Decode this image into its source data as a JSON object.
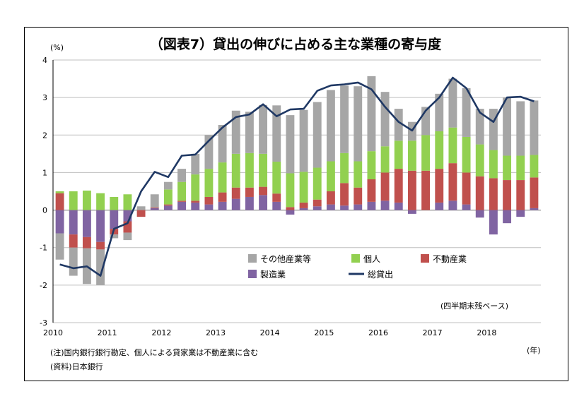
{
  "chart_data": {
    "type": "bar",
    "title": "（図表7）貸出の伸びに占める主な業種の寄与度",
    "y_unit": "(%)",
    "x_unit": "(年)",
    "ylim": [
      -3,
      4
    ],
    "yticks": [
      "4",
      "3",
      "2",
      "1",
      "0",
      "-1",
      "-2",
      "-3"
    ],
    "ytick_values": [
      4,
      3,
      2,
      1,
      0,
      -1,
      -2,
      -3
    ],
    "xtick_labels": [
      "2010",
      "2011",
      "2012",
      "2013",
      "2014",
      "2015",
      "2016",
      "2017",
      "2018"
    ],
    "xtick_quarter_index": [
      0,
      4,
      8,
      12,
      16,
      20,
      24,
      28,
      32
    ],
    "quarters": [
      "2010Q1",
      "2010Q2",
      "2010Q3",
      "2010Q4",
      "2011Q1",
      "2011Q2",
      "2011Q3",
      "2011Q4",
      "2012Q1",
      "2012Q2",
      "2012Q3",
      "2012Q4",
      "2013Q1",
      "2013Q2",
      "2013Q3",
      "2013Q4",
      "2014Q1",
      "2014Q2",
      "2014Q3",
      "2014Q4",
      "2015Q1",
      "2015Q2",
      "2015Q3",
      "2015Q4",
      "2016Q1",
      "2016Q2",
      "2016Q3",
      "2016Q4",
      "2017Q1",
      "2017Q2",
      "2017Q3",
      "2017Q4",
      "2018Q1",
      "2018Q2",
      "2018Q3",
      "2018Q4"
    ],
    "grid": true,
    "legend_position": "bottom-left",
    "series": [
      {
        "name": "製造業",
        "color": "#8064a2",
        "values": [
          -0.62,
          -0.65,
          -0.72,
          -0.85,
          -0.5,
          -0.3,
          0.0,
          0.05,
          0.12,
          0.22,
          0.2,
          0.15,
          0.22,
          0.3,
          0.35,
          0.4,
          0.22,
          -0.12,
          0.05,
          0.1,
          0.15,
          0.12,
          0.15,
          0.22,
          0.25,
          0.2,
          -0.1,
          0.0,
          0.2,
          0.25,
          0.15,
          -0.2,
          -0.65,
          -0.35,
          -0.18,
          0.05
        ]
      },
      {
        "name": "不動産業",
        "color": "#c0504d",
        "values": [
          0.45,
          -0.35,
          -0.3,
          -0.2,
          -0.15,
          -0.3,
          -0.18,
          0.02,
          0.03,
          0.03,
          0.05,
          0.2,
          0.25,
          0.3,
          0.25,
          0.22,
          0.22,
          0.08,
          0.15,
          0.18,
          0.35,
          0.6,
          0.45,
          0.6,
          0.75,
          0.9,
          1.05,
          1.05,
          0.9,
          1.0,
          0.85,
          0.9,
          0.85,
          0.8,
          0.8,
          0.82
        ]
      },
      {
        "name": "個人",
        "color": "#92d050",
        "values": [
          0.05,
          0.5,
          0.52,
          0.45,
          0.35,
          0.42,
          0.0,
          0.0,
          0.4,
          0.5,
          0.7,
          0.75,
          0.8,
          0.9,
          0.92,
          0.88,
          0.85,
          0.9,
          0.82,
          0.85,
          0.8,
          0.8,
          0.7,
          0.75,
          0.7,
          0.75,
          0.8,
          0.95,
          1.0,
          0.95,
          0.95,
          0.85,
          0.75,
          0.65,
          0.65,
          0.6
        ]
      },
      {
        "name": "その他産業等",
        "color": "#a6a6a6",
        "values": [
          -0.7,
          -0.75,
          -0.95,
          -0.95,
          -0.1,
          -0.2,
          0.1,
          0.35,
          0.2,
          0.35,
          0.55,
          0.9,
          1.0,
          1.15,
          1.1,
          1.3,
          1.5,
          1.55,
          1.65,
          1.75,
          1.9,
          1.8,
          2.0,
          2.0,
          1.45,
          0.85,
          0.5,
          0.75,
          1.0,
          1.3,
          1.3,
          0.95,
          1.1,
          1.55,
          1.45,
          1.45
        ]
      }
    ],
    "line": {
      "name": "総貸出",
      "color": "#1f3864",
      "values": [
        -1.45,
        -1.55,
        -1.5,
        -1.75,
        -0.5,
        -0.35,
        0.5,
        1.02,
        0.88,
        1.45,
        1.48,
        1.85,
        2.2,
        2.48,
        2.55,
        2.82,
        2.5,
        2.68,
        2.7,
        3.18,
        3.32,
        3.35,
        3.4,
        3.22,
        2.75,
        2.35,
        2.12,
        2.65,
        3.0,
        3.53,
        3.25,
        2.6,
        2.35,
        3.0,
        3.02,
        2.9
      ]
    },
    "legend": [
      {
        "label": "その他産業等",
        "kind": "bar",
        "color": "#a6a6a6"
      },
      {
        "label": "個人",
        "kind": "bar",
        "color": "#92d050"
      },
      {
        "label": "不動産業",
        "kind": "bar",
        "color": "#c0504d"
      },
      {
        "label": "製造業",
        "kind": "bar",
        "color": "#8064a2"
      },
      {
        "label": "総貸出",
        "kind": "line",
        "color": "#1f3864"
      }
    ],
    "annotation": "(四半期末残ベース)"
  },
  "notes": {
    "note1": "(注)国内銀行銀行勘定、個人による貸家業は不動産業に含む",
    "source": "(資料)日本銀行"
  }
}
